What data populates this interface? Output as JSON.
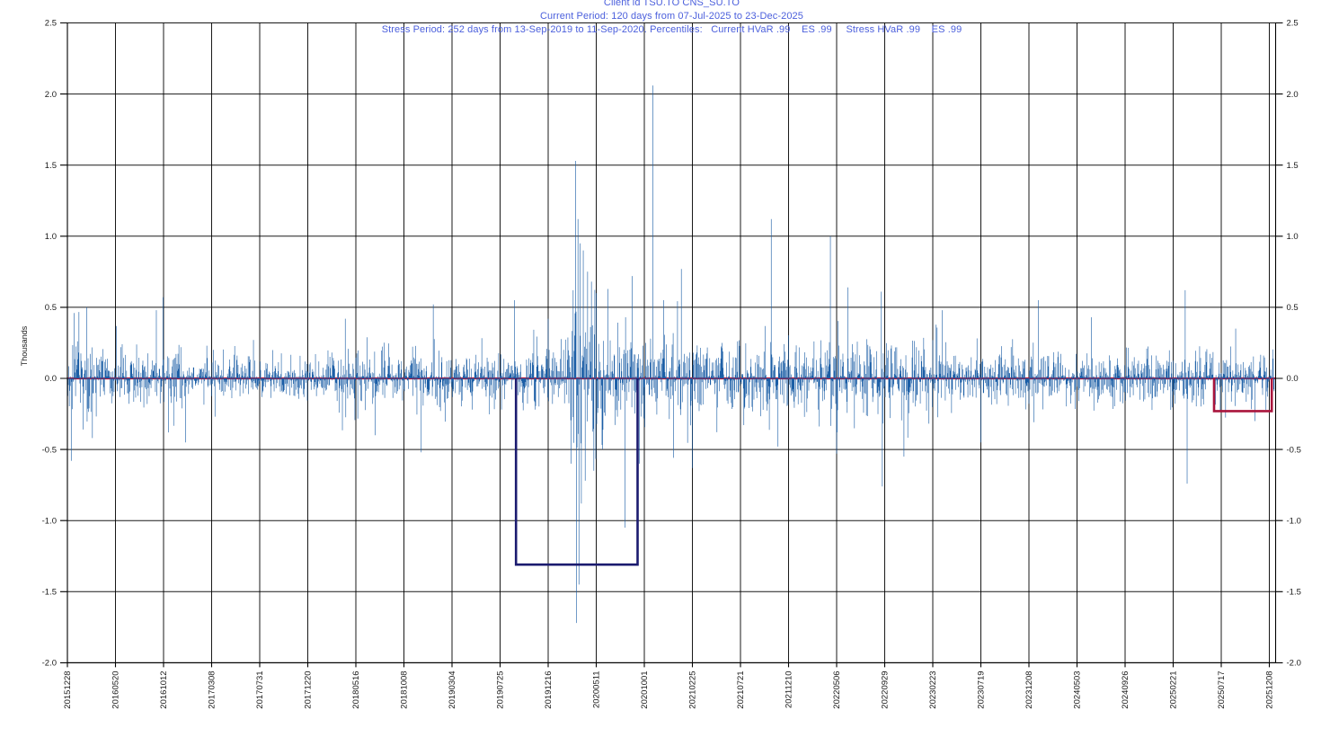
{
  "header": {
    "line1": "Client id TSU.TO CNS_SU.TO",
    "line2": "Current Period: 120 days from 07-Jul-2025 to 23-Dec-2025",
    "line3": "Stress Period: 252 days from 13-Sep-2019 to 11-Sep-2020. Percentiles:   Current HVaR .99    ES .99     Stress HVaR .99    ES .99"
  },
  "colors": {
    "bar": "#1B5EA6",
    "stress_box": "#1B1B6F",
    "current_box": "#A9143C",
    "zero_line": "#A9143C",
    "grid": "#000000",
    "axis_text": "#1a1a1a",
    "title_text": "#4B5FDC",
    "background": "#FFFFFF"
  },
  "chart_data": {
    "type": "bar",
    "title": "Client id TSU.TO CNS_SU.TO",
    "xlabel": "",
    "ylabel": "Thousands",
    "ylim": [
      -2.0,
      2.5
    ],
    "ytick_step": 0.5,
    "y_tick_labels": [
      "2.5",
      "2.0",
      "1.5",
      "1.0",
      "0.5",
      "0.0",
      "-0.5",
      "-1.0",
      "-1.5",
      "-2.0"
    ],
    "x_tick_labels": [
      "20151228",
      "20160520",
      "20161012",
      "20170308",
      "20170731",
      "20171220",
      "20180516",
      "20181008",
      "20190304",
      "20190725",
      "20191216",
      "20200511",
      "20201001",
      "20210225",
      "20210721",
      "20211210",
      "20220506",
      "20220929",
      "20230223",
      "20230719",
      "20231208",
      "20240503",
      "20240926",
      "20250221",
      "20250717",
      "20251208"
    ],
    "trading_days_per_tick": 100,
    "n_points": 2511,
    "seed": 20151228,
    "grid": "on",
    "legend_position": "none",
    "volatility_segments": [
      [
        0,
        55,
        0.16
      ],
      [
        55,
        200,
        0.105
      ],
      [
        200,
        240,
        0.12
      ],
      [
        240,
        560,
        0.085
      ],
      [
        560,
        790,
        0.1
      ],
      [
        790,
        935,
        0.095
      ],
      [
        935,
        1040,
        0.12
      ],
      [
        1040,
        1125,
        0.27
      ],
      [
        1125,
        1330,
        0.16
      ],
      [
        1330,
        1560,
        0.125
      ],
      [
        1560,
        1810,
        0.15
      ],
      [
        1810,
        2060,
        0.11
      ],
      [
        2060,
        2310,
        0.1
      ],
      [
        2310,
        2511,
        0.095
      ]
    ],
    "spikes": [
      [
        8,
        -0.58
      ],
      [
        14,
        0.46
      ],
      [
        40,
        0.5
      ],
      [
        52,
        -0.42
      ],
      [
        185,
        0.48
      ],
      [
        199,
        0.57
      ],
      [
        210,
        -0.38
      ],
      [
        246,
        -0.45
      ],
      [
        578,
        0.42
      ],
      [
        640,
        -0.4
      ],
      [
        736,
        -0.52
      ],
      [
        761,
        0.52
      ],
      [
        930,
        0.55
      ],
      [
        1000,
        0.42
      ],
      [
        1048,
        -0.6
      ],
      [
        1052,
        0.62
      ],
      [
        1057,
        1.53
      ],
      [
        1059,
        -1.72
      ],
      [
        1062,
        1.12
      ],
      [
        1064,
        -1.45
      ],
      [
        1066,
        0.95
      ],
      [
        1069,
        -0.88
      ],
      [
        1073,
        0.9
      ],
      [
        1077,
        -0.72
      ],
      [
        1082,
        0.75
      ],
      [
        1090,
        0.68
      ],
      [
        1095,
        -0.65
      ],
      [
        1100,
        0.6
      ],
      [
        1160,
        -1.05
      ],
      [
        1175,
        0.72
      ],
      [
        1190,
        -0.6
      ],
      [
        1218,
        2.06
      ],
      [
        1240,
        0.55
      ],
      [
        1277,
        0.77
      ],
      [
        1300,
        -0.63
      ],
      [
        1464,
        1.12
      ],
      [
        1478,
        -0.48
      ],
      [
        1587,
        1.0
      ],
      [
        1600,
        -0.53
      ],
      [
        1623,
        0.64
      ],
      [
        1693,
        0.61
      ],
      [
        1695,
        -0.76
      ],
      [
        1740,
        -0.55
      ],
      [
        1820,
        0.48
      ],
      [
        1900,
        -0.45
      ],
      [
        2020,
        0.55
      ],
      [
        2130,
        0.43
      ],
      [
        2325,
        0.62
      ],
      [
        2329,
        -0.74
      ],
      [
        2430,
        0.35
      ],
      [
        2470,
        -0.3
      ]
    ],
    "overlays": {
      "stress_period_box": {
        "start_day": 933,
        "end_day": 1186,
        "bottom_value": -1.31
      },
      "current_period_box": {
        "start_day": 2385,
        "end_day": 2505,
        "bottom_value": -0.23
      },
      "zero_line_value": 0.0
    }
  }
}
